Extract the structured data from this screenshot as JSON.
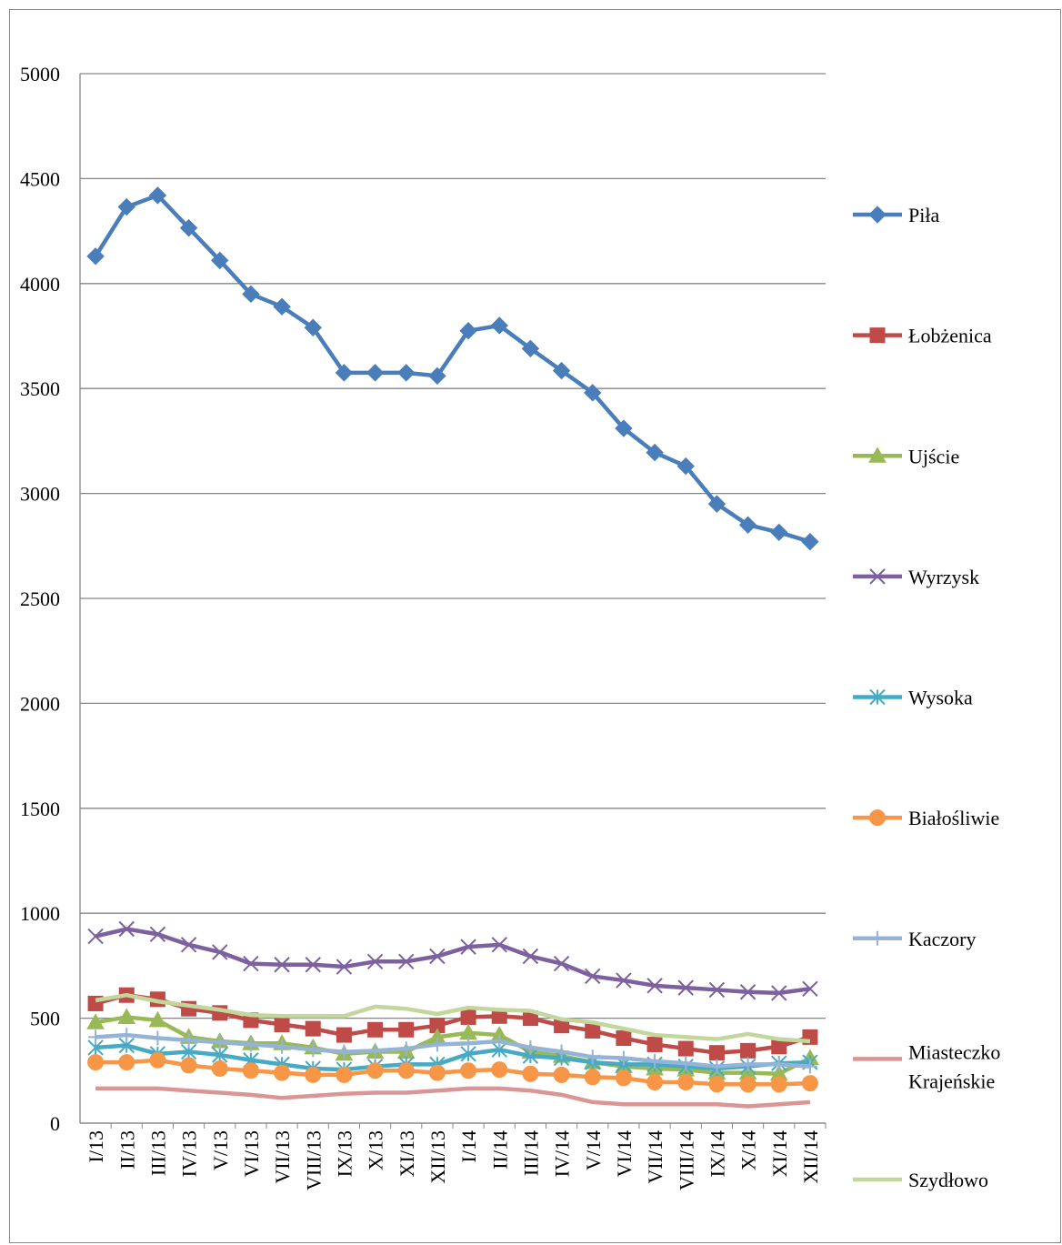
{
  "chart_data": {
    "type": "line",
    "categories": [
      "I/13",
      "II/13",
      "III/13",
      "IV/13",
      "V/13",
      "VI/13",
      "VII/13",
      "VIII/13",
      "IX/13",
      "X/13",
      "XI/13",
      "XII/13",
      "I/14",
      "II/14",
      "III/14",
      "IV/14",
      "V/14",
      "VI/14",
      "VII/14",
      "VIII/14",
      "IX/14",
      "X/14",
      "XI/14",
      "XII/14"
    ],
    "ylim": [
      0,
      5000
    ],
    "yticks": [
      0,
      500,
      1000,
      1500,
      2000,
      2500,
      3000,
      3500,
      4000,
      4500,
      5000
    ],
    "grid": true,
    "legend": "right",
    "series": [
      {
        "name": "Piła",
        "color": "#4a7ebb",
        "marker": "diamond",
        "values": [
          4130,
          4365,
          4420,
          4265,
          4110,
          3950,
          3890,
          3790,
          3575,
          3575,
          3575,
          3560,
          3775,
          3800,
          3690,
          3585,
          3480,
          3310,
          3195,
          3130,
          2950,
          2850,
          2815,
          2770
        ]
      },
      {
        "name": "Łobżenica",
        "color": "#be4b48",
        "marker": "square",
        "values": [
          570,
          610,
          590,
          545,
          525,
          490,
          470,
          450,
          420,
          445,
          445,
          465,
          505,
          510,
          500,
          465,
          440,
          405,
          375,
          355,
          335,
          345,
          365,
          410
        ]
      },
      {
        "name": "Ujście",
        "color": "#98b954",
        "marker": "triangle",
        "values": [
          480,
          505,
          490,
          410,
          390,
          380,
          380,
          360,
          330,
          340,
          340,
          410,
          430,
          420,
          340,
          320,
          290,
          270,
          260,
          255,
          240,
          240,
          235,
          310
        ]
      },
      {
        "name": "Wyrzysk",
        "color": "#7d60a0",
        "marker": "x",
        "values": [
          890,
          925,
          900,
          850,
          815,
          760,
          755,
          755,
          745,
          770,
          770,
          795,
          840,
          850,
          795,
          760,
          700,
          680,
          655,
          645,
          635,
          625,
          620,
          640
        ]
      },
      {
        "name": "Wysoka",
        "color": "#46aac5",
        "marker": "star",
        "values": [
          360,
          370,
          330,
          340,
          325,
          300,
          280,
          260,
          255,
          270,
          280,
          280,
          330,
          350,
          320,
          310,
          290,
          280,
          280,
          270,
          260,
          270,
          285,
          290
        ]
      },
      {
        "name": "Białośliwie",
        "color": "#f79646",
        "marker": "circle",
        "values": [
          290,
          290,
          300,
          275,
          260,
          250,
          240,
          230,
          230,
          250,
          250,
          240,
          250,
          255,
          235,
          230,
          220,
          215,
          195,
          195,
          185,
          185,
          185,
          190
        ]
      },
      {
        "name": "Kaczory",
        "color": "#95b3d7",
        "marker": "plus",
        "values": [
          410,
          420,
          405,
          395,
          385,
          375,
          365,
          350,
          340,
          345,
          355,
          375,
          380,
          390,
          360,
          340,
          315,
          310,
          295,
          285,
          270,
          280,
          280,
          270
        ]
      },
      {
        "name": "Miasteczko Krajeńskie",
        "color": "#d99694",
        "marker": "none",
        "values": [
          165,
          165,
          165,
          155,
          145,
          135,
          120,
          130,
          140,
          145,
          145,
          155,
          165,
          165,
          155,
          135,
          100,
          90,
          90,
          90,
          90,
          80,
          90,
          100
        ]
      },
      {
        "name": "Szydłowo",
        "color": "#c3d69b",
        "marker": "none",
        "values": [
          585,
          610,
          580,
          560,
          540,
          515,
          510,
          510,
          510,
          555,
          545,
          520,
          550,
          540,
          535,
          495,
          480,
          450,
          420,
          410,
          400,
          425,
          400,
          390
        ]
      }
    ]
  }
}
